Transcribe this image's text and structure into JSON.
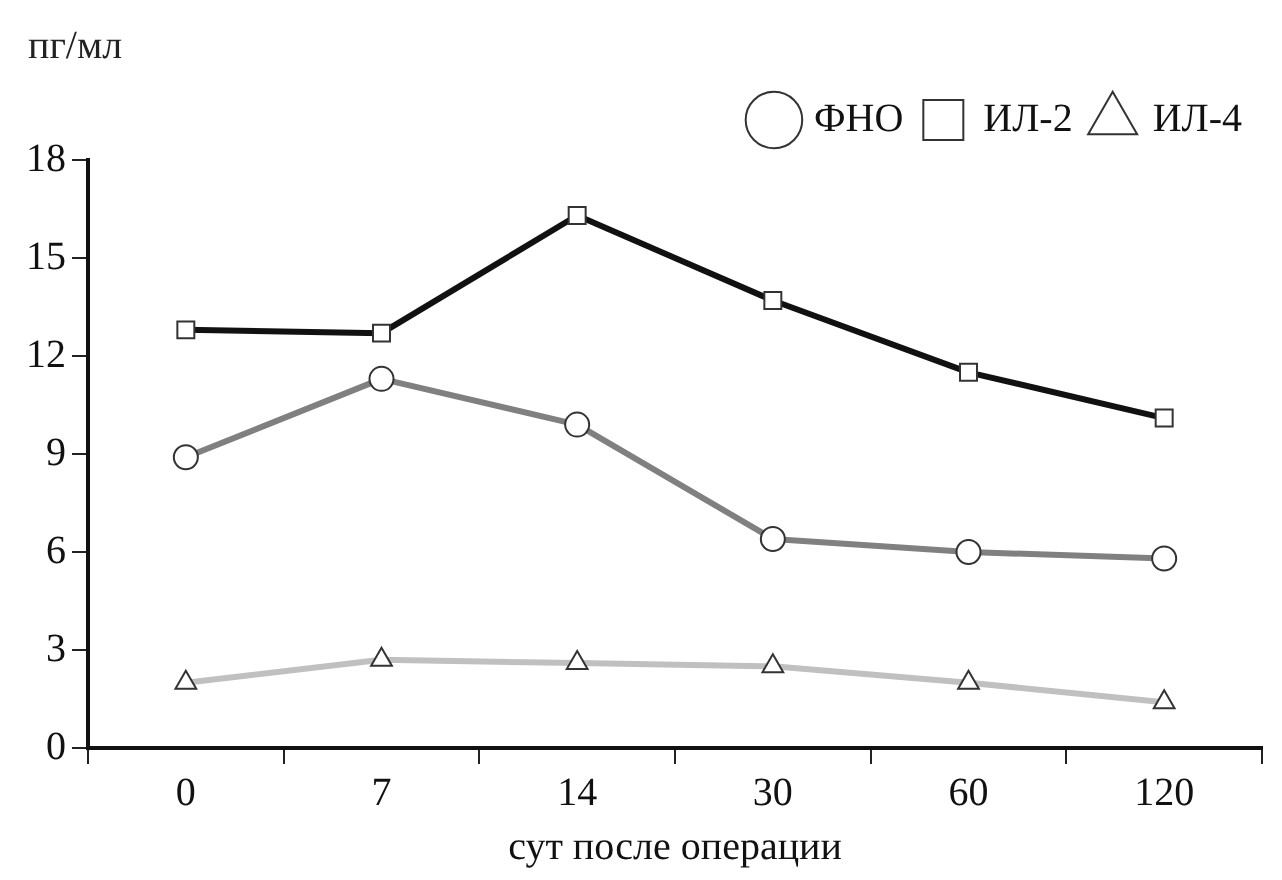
{
  "chart_data": {
    "type": "line",
    "ylabel": "пг/мл",
    "xlabel": "сут после операции",
    "categories": [
      "0",
      "7",
      "14",
      "30",
      "60",
      "120"
    ],
    "ylim": [
      0,
      18
    ],
    "yticks": [
      0,
      3,
      6,
      9,
      12,
      15,
      18
    ],
    "grid": false,
    "legend": "top right",
    "series": [
      {
        "name": "ФНО",
        "color": "#808080",
        "marker": "circle",
        "values": [
          8.9,
          11.3,
          9.9,
          6.4,
          6.0,
          5.8
        ]
      },
      {
        "name": "ИЛ-2",
        "color": "#111111",
        "marker": "square",
        "values": [
          12.8,
          12.7,
          16.3,
          13.7,
          11.5,
          10.1
        ]
      },
      {
        "name": "ИЛ-4",
        "color": "#c0c0c0",
        "marker": "triangle",
        "values": [
          2.0,
          2.7,
          2.6,
          2.5,
          2.0,
          1.4
        ]
      }
    ]
  }
}
